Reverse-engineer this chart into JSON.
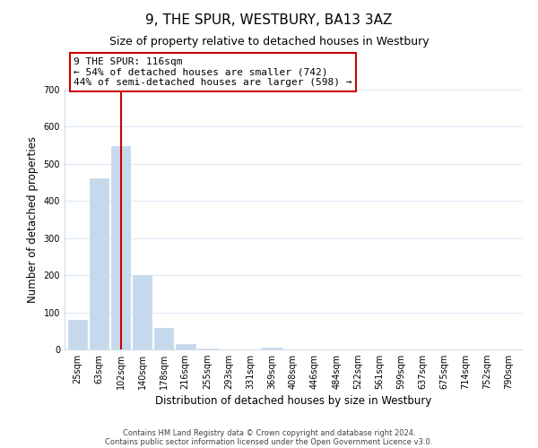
{
  "title": "9, THE SPUR, WESTBURY, BA13 3AZ",
  "subtitle": "Size of property relative to detached houses in Westbury",
  "xlabel": "Distribution of detached houses by size in Westbury",
  "ylabel": "Number of detached properties",
  "bar_labels": [
    "25sqm",
    "63sqm",
    "102sqm",
    "140sqm",
    "178sqm",
    "216sqm",
    "255sqm",
    "293sqm",
    "331sqm",
    "369sqm",
    "408sqm",
    "446sqm",
    "484sqm",
    "522sqm",
    "561sqm",
    "599sqm",
    "637sqm",
    "675sqm",
    "714sqm",
    "752sqm",
    "790sqm"
  ],
  "bar_values": [
    80,
    460,
    548,
    200,
    57,
    15,
    3,
    0,
    0,
    4,
    0,
    0,
    0,
    0,
    0,
    0,
    0,
    0,
    0,
    0,
    0
  ],
  "bar_color": "#c5d8ec",
  "bar_edge_color": "#c5d8ec",
  "grid_color": "#ddeaf5",
  "background_color": "#ffffff",
  "ylim": [
    0,
    700
  ],
  "yticks": [
    0,
    100,
    200,
    300,
    400,
    500,
    600,
    700
  ],
  "vline_x_index": 2,
  "vline_color": "#cc0000",
  "annotation_line1": "9 THE SPUR: 116sqm",
  "annotation_line2": "← 54% of detached houses are smaller (742)",
  "annotation_line3": "44% of semi-detached houses are larger (598) →",
  "footer_line1": "Contains HM Land Registry data © Crown copyright and database right 2024.",
  "footer_line2": "Contains public sector information licensed under the Open Government Licence v3.0.",
  "title_fontsize": 11,
  "subtitle_fontsize": 9,
  "tick_fontsize": 7,
  "ylabel_fontsize": 8.5,
  "xlabel_fontsize": 8.5,
  "annotation_fontsize": 8,
  "footer_fontsize": 6
}
